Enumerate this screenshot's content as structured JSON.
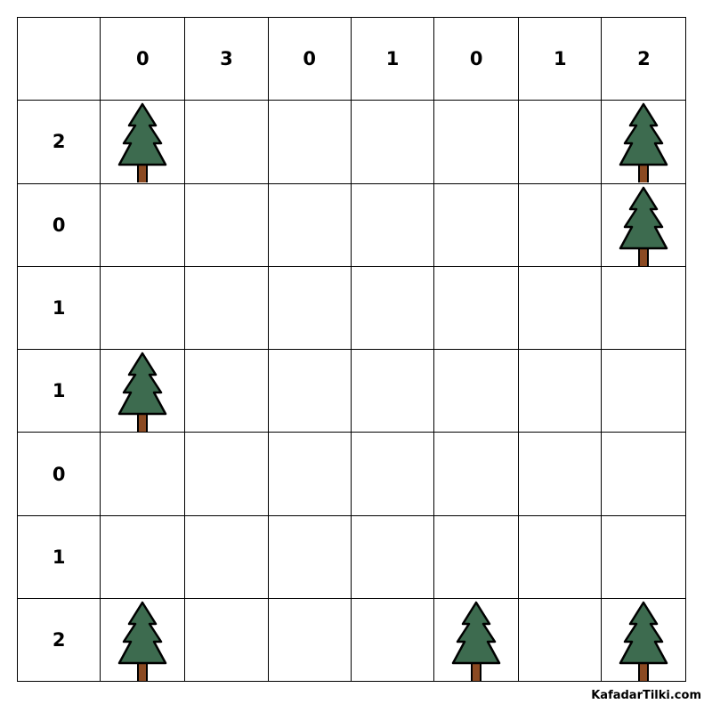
{
  "puzzle": {
    "column_clues": [
      "0",
      "3",
      "0",
      "1",
      "0",
      "1",
      "2"
    ],
    "row_clues": [
      "2",
      "0",
      "1",
      "1",
      "0",
      "1",
      "2"
    ],
    "grid": [
      [
        "tree",
        "",
        "",
        "",
        "",
        "",
        "tree"
      ],
      [
        "",
        "",
        "",
        "",
        "",
        "",
        "tree"
      ],
      [
        "",
        "",
        "",
        "",
        "",
        "",
        ""
      ],
      [
        "tree",
        "",
        "",
        "",
        "",
        "",
        ""
      ],
      [
        "",
        "",
        "",
        "",
        "",
        "",
        ""
      ],
      [
        "",
        "",
        "",
        "",
        "",
        "",
        ""
      ],
      [
        "tree",
        "",
        "",
        "",
        "tree",
        "",
        "tree"
      ]
    ],
    "colors": {
      "foliage": "#3d6b4f",
      "trunk": "#8b4a22",
      "outline": "#000000"
    }
  },
  "watermark": "KafadarTilki.com"
}
